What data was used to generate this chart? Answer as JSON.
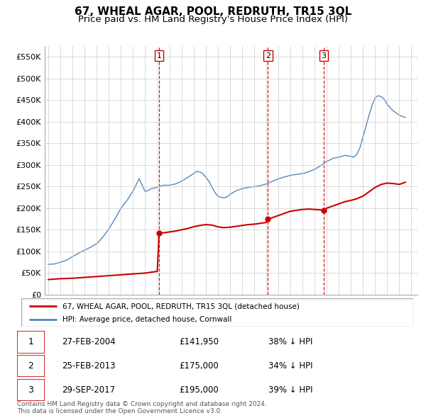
{
  "title": "67, WHEAL AGAR, POOL, REDRUTH, TR15 3QL",
  "subtitle": "Price paid vs. HM Land Registry's House Price Index (HPI)",
  "title_fontsize": 11,
  "subtitle_fontsize": 9.5,
  "ylim": [
    0,
    575000
  ],
  "yticks": [
    0,
    50000,
    100000,
    150000,
    200000,
    250000,
    300000,
    350000,
    400000,
    450000,
    500000,
    550000
  ],
  "ytick_labels": [
    "£0",
    "£50K",
    "£100K",
    "£150K",
    "£200K",
    "£250K",
    "£300K",
    "£350K",
    "£400K",
    "£450K",
    "£500K",
    "£550K"
  ],
  "xlim_start": 1994.7,
  "xlim_end": 2025.5,
  "red_color": "#cc0000",
  "blue_color": "#5588bb",
  "dashed_color": "#cc0000",
  "grid_color": "#cccccc",
  "background_color": "#ffffff",
  "legend_label_red": "67, WHEAL AGAR, POOL, REDRUTH, TR15 3QL (detached house)",
  "legend_label_blue": "HPI: Average price, detached house, Cornwall",
  "transactions": [
    {
      "num": 1,
      "date": "27-FEB-2004",
      "price": "£141,950",
      "pct": "38% ↓ HPI",
      "year": 2004.15
    },
    {
      "num": 2,
      "date": "25-FEB-2013",
      "price": "£175,000",
      "pct": "34% ↓ HPI",
      "year": 2013.15
    },
    {
      "num": 3,
      "date": "29-SEP-2017",
      "price": "£195,000",
      "pct": "39% ↓ HPI",
      "year": 2017.75
    }
  ],
  "footnote": "Contains HM Land Registry data © Crown copyright and database right 2024.\nThis data is licensed under the Open Government Licence v3.0.",
  "hpi_x": [
    1995.0,
    1995.5,
    1996.0,
    1996.5,
    1997.0,
    1997.5,
    1998.0,
    1998.5,
    1999.0,
    1999.5,
    2000.0,
    2000.5,
    2001.0,
    2001.5,
    2002.0,
    2002.5,
    2003.0,
    2003.5,
    2004.0,
    2004.5,
    2005.0,
    2005.5,
    2006.0,
    2006.5,
    2007.0,
    2007.25,
    2007.5,
    2007.75,
    2008.0,
    2008.25,
    2008.5,
    2008.75,
    2009.0,
    2009.25,
    2009.5,
    2009.75,
    2010.0,
    2010.5,
    2011.0,
    2011.5,
    2012.0,
    2012.5,
    2013.0,
    2013.5,
    2014.0,
    2014.5,
    2015.0,
    2015.5,
    2016.0,
    2016.5,
    2017.0,
    2017.5,
    2018.0,
    2018.5,
    2019.0,
    2019.5,
    2020.0,
    2020.25,
    2020.5,
    2020.75,
    2021.0,
    2021.25,
    2021.5,
    2021.75,
    2022.0,
    2022.25,
    2022.5,
    2022.75,
    2023.0,
    2023.25,
    2023.5,
    2023.75,
    2024.0,
    2024.25,
    2024.5
  ],
  "hpi_y": [
    70000,
    71000,
    75000,
    80000,
    88000,
    96000,
    103000,
    110000,
    118000,
    133000,
    152000,
    175000,
    200000,
    218000,
    240000,
    268000,
    238000,
    245000,
    248000,
    253000,
    253000,
    256000,
    262000,
    271000,
    280000,
    285000,
    284000,
    280000,
    272000,
    263000,
    250000,
    237000,
    228000,
    225000,
    224000,
    226000,
    232000,
    240000,
    245000,
    248000,
    250000,
    252000,
    256000,
    262000,
    268000,
    272000,
    276000,
    278000,
    280000,
    284000,
    290000,
    298000,
    308000,
    315000,
    318000,
    322000,
    320000,
    318000,
    325000,
    340000,
    365000,
    390000,
    415000,
    438000,
    455000,
    460000,
    458000,
    452000,
    440000,
    432000,
    425000,
    420000,
    415000,
    412000,
    410000
  ],
  "red_x": [
    1995.0,
    1995.5,
    1996.0,
    1996.5,
    1997.0,
    1997.5,
    1998.0,
    1998.5,
    1999.0,
    1999.5,
    2000.0,
    2000.5,
    2001.0,
    2001.5,
    2002.0,
    2002.5,
    2003.0,
    2003.5,
    2004.0,
    2004.15,
    2004.5,
    2005.0,
    2005.5,
    2006.0,
    2006.5,
    2007.0,
    2007.5,
    2008.0,
    2008.5,
    2009.0,
    2009.5,
    2010.0,
    2010.5,
    2011.0,
    2011.5,
    2012.0,
    2012.5,
    2013.0,
    2013.15,
    2013.5,
    2014.0,
    2014.5,
    2015.0,
    2015.5,
    2016.0,
    2016.5,
    2017.0,
    2017.5,
    2017.75,
    2018.0,
    2018.5,
    2019.0,
    2019.5,
    2020.0,
    2020.5,
    2021.0,
    2021.5,
    2022.0,
    2022.5,
    2023.0,
    2023.5,
    2024.0,
    2024.5
  ],
  "red_y": [
    35000,
    36000,
    37000,
    37500,
    38000,
    39000,
    40000,
    41000,
    42000,
    43000,
    44000,
    45000,
    46000,
    47000,
    48000,
    49000,
    50000,
    52000,
    54000,
    141950,
    143000,
    145000,
    147000,
    150000,
    153000,
    157000,
    160000,
    162000,
    161000,
    157000,
    155000,
    156000,
    158000,
    160000,
    162000,
    163000,
    165000,
    167000,
    175000,
    178000,
    183000,
    188000,
    193000,
    195000,
    197000,
    198000,
    197000,
    196000,
    195000,
    200000,
    205000,
    210000,
    215000,
    218000,
    222000,
    228000,
    238000,
    248000,
    255000,
    258000,
    257000,
    255000,
    260000
  ]
}
